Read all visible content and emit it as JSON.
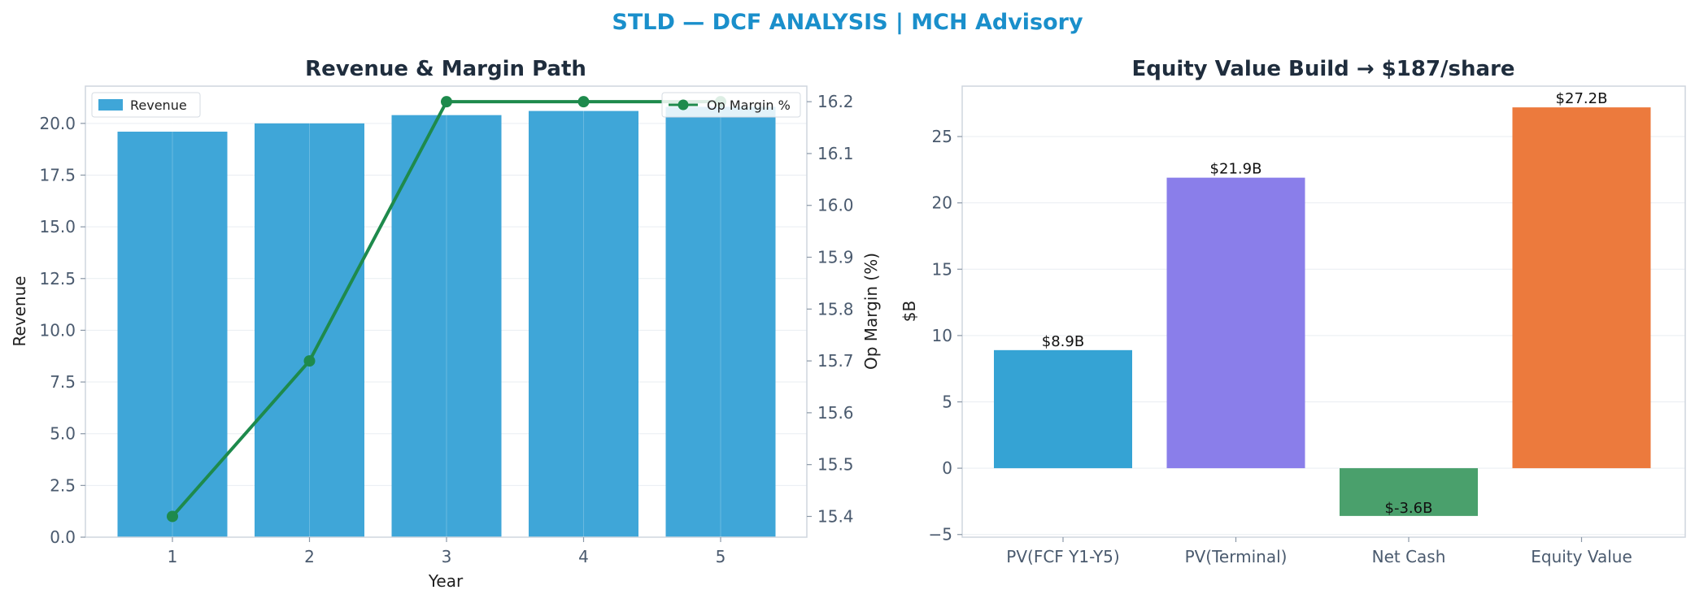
{
  "title": "STLD — DCF ANALYSIS | MCH Advisory",
  "chart_data": [
    {
      "type": "bar",
      "title": "Revenue & Margin Path",
      "xlabel": "Year",
      "ylabel": "Revenue",
      "y2label": "Op Margin (%)",
      "categories": [
        "1",
        "2",
        "3",
        "4",
        "5"
      ],
      "ylim": [
        0,
        21.8
      ],
      "y2lim": [
        15.36,
        16.23
      ],
      "yticks": [
        "0.0",
        "2.5",
        "5.0",
        "7.5",
        "10.0",
        "12.5",
        "15.0",
        "17.5",
        "20.0"
      ],
      "y2ticks": [
        "15.4",
        "15.5",
        "15.6",
        "15.7",
        "15.8",
        "15.9",
        "16.0",
        "16.1",
        "16.2"
      ],
      "grid": true,
      "series": [
        {
          "name": "Revenue",
          "kind": "bar",
          "axis": "left",
          "color": "#3fa6d8",
          "values": [
            19.6,
            20.0,
            20.4,
            20.6,
            20.8
          ]
        },
        {
          "name": "Op Margin %",
          "kind": "line",
          "axis": "right",
          "color": "#1e8a4c",
          "values": [
            15.4,
            15.7,
            16.2,
            16.2,
            16.2
          ]
        }
      ],
      "legend": [
        {
          "label": "Revenue",
          "placement": "top-left"
        },
        {
          "label": "Op Margin %",
          "placement": "top-right"
        }
      ]
    },
    {
      "type": "bar",
      "title": "Equity Value Build → $187/share",
      "xlabel": "",
      "ylabel": "$B",
      "categories": [
        "PV(FCF Y1-Y5)",
        "PV(Terminal)",
        "Net Cash",
        "Equity Value"
      ],
      "values": [
        8.9,
        21.9,
        -3.6,
        27.2
      ],
      "data_labels": [
        "$8.9B",
        "$21.9B",
        "$-3.6B",
        "$27.2B"
      ],
      "colors": [
        "#35a3d4",
        "#8a7eea",
        "#4aa06c",
        "#ec7a3d"
      ],
      "ylim": [
        -5.2,
        28.8
      ],
      "yticks": [
        "−5",
        "0",
        "5",
        "10",
        "15",
        "20",
        "25"
      ],
      "grid": true
    }
  ]
}
